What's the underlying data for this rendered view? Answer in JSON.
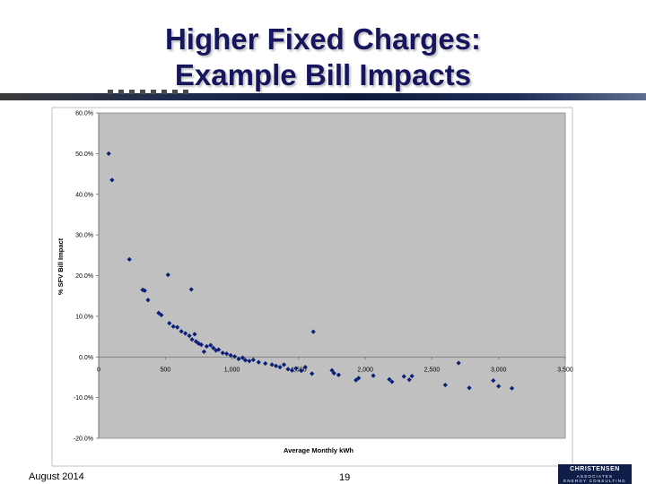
{
  "slide": {
    "title_line1": "Higher Fixed Charges:",
    "title_line2": "Example Bill Impacts",
    "footer_date": "August 2014",
    "page_number": "19",
    "logo_main": "CHRISTENSEN",
    "logo_sub1": "ASSOCIATES",
    "logo_sub2": "ENERGY CONSULTING"
  },
  "colors": {
    "title": "#16165e",
    "plot_background": "#c0c0c0",
    "marker": "#0a1f78",
    "banner": "#0e1a3c"
  },
  "chart_data": {
    "type": "scatter",
    "title": "",
    "xlabel": "Average Monthly kWh",
    "ylabel": "% SFV Bill Impact",
    "xlim": [
      0,
      3500
    ],
    "ylim": [
      -20,
      60
    ],
    "x_ticks": [
      0,
      500,
      1000,
      1500,
      2000,
      2500,
      3000,
      3500
    ],
    "x_tick_labels": [
      "0",
      "500",
      "1,000",
      "1,500",
      "2,000",
      "2,500",
      "3,000",
      "3,500"
    ],
    "y_ticks": [
      -20,
      -10,
      0,
      10,
      20,
      30,
      40,
      50,
      60
    ],
    "y_tick_labels": [
      "-20.0%",
      "-10.0%",
      "0.0%",
      "10.0%",
      "20.0%",
      "30.0%",
      "40.0%",
      "50.0%",
      "60.0%"
    ],
    "grid": false,
    "legend": "none",
    "points": [
      [
        75,
        50.0
      ],
      [
        100,
        43.5
      ],
      [
        230,
        24.0
      ],
      [
        330,
        16.5
      ],
      [
        345,
        16.3
      ],
      [
        370,
        14.0
      ],
      [
        450,
        10.8
      ],
      [
        470,
        10.3
      ],
      [
        520,
        20.2
      ],
      [
        530,
        8.3
      ],
      [
        560,
        7.5
      ],
      [
        590,
        7.3
      ],
      [
        620,
        6.3
      ],
      [
        650,
        5.8
      ],
      [
        680,
        5.2
      ],
      [
        695,
        16.6
      ],
      [
        700,
        4.3
      ],
      [
        720,
        5.6
      ],
      [
        730,
        3.8
      ],
      [
        750,
        3.3
      ],
      [
        770,
        3.0
      ],
      [
        790,
        1.3
      ],
      [
        810,
        2.6
      ],
      [
        840,
        2.9
      ],
      [
        860,
        2.2
      ],
      [
        880,
        1.6
      ],
      [
        900,
        1.8
      ],
      [
        930,
        1.0
      ],
      [
        960,
        0.8
      ],
      [
        990,
        0.4
      ],
      [
        1020,
        0.1
      ],
      [
        1050,
        -0.5
      ],
      [
        1080,
        -0.2
      ],
      [
        1100,
        -0.8
      ],
      [
        1130,
        -1.0
      ],
      [
        1160,
        -0.7
      ],
      [
        1200,
        -1.3
      ],
      [
        1250,
        -1.6
      ],
      [
        1300,
        -1.9
      ],
      [
        1330,
        -2.2
      ],
      [
        1360,
        -2.5
      ],
      [
        1390,
        -1.9
      ],
      [
        1420,
        -3.0
      ],
      [
        1450,
        -3.3
      ],
      [
        1480,
        -2.8
      ],
      [
        1520,
        -3.4
      ],
      [
        1550,
        -2.5
      ],
      [
        1600,
        -4.1
      ],
      [
        1610,
        6.2
      ],
      [
        1750,
        -3.3
      ],
      [
        1765,
        -4.0
      ],
      [
        1800,
        -4.4
      ],
      [
        1930,
        -5.7
      ],
      [
        1950,
        -5.2
      ],
      [
        2060,
        -4.6
      ],
      [
        2180,
        -5.5
      ],
      [
        2200,
        -6.1
      ],
      [
        2290,
        -4.8
      ],
      [
        2330,
        -5.6
      ],
      [
        2350,
        -4.7
      ],
      [
        2600,
        -6.9
      ],
      [
        2700,
        -1.5
      ],
      [
        2780,
        -7.6
      ],
      [
        2960,
        -5.8
      ],
      [
        3000,
        -7.2
      ],
      [
        3100,
        -7.7
      ]
    ]
  }
}
